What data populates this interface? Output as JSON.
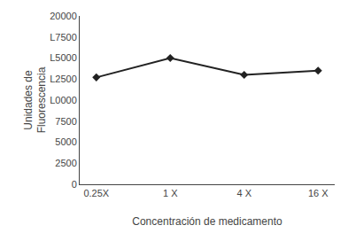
{
  "chart_data": {
    "type": "line",
    "categories": [
      "0.25X",
      "1 X",
      "4 X",
      "16 X"
    ],
    "values": [
      12700,
      15000,
      13000,
      13500
    ],
    "color": "#222222",
    "marker": "diamond",
    "line_style": "solid",
    "xlabel": "Concentración de medicamento",
    "ylabel": "Unidades de\nFluorescencia",
    "ylim": [
      0,
      20000
    ],
    "yticks": [
      0,
      2500,
      5000,
      7500,
      {
        "value": 10000,
        "label": "L0000"
      },
      {
        "value": 12500,
        "label": "L2500"
      },
      {
        "value": 15000,
        "label": "L5000"
      },
      {
        "value": 17500,
        "label": "L7500"
      },
      20000
    ],
    "grid": false
  }
}
